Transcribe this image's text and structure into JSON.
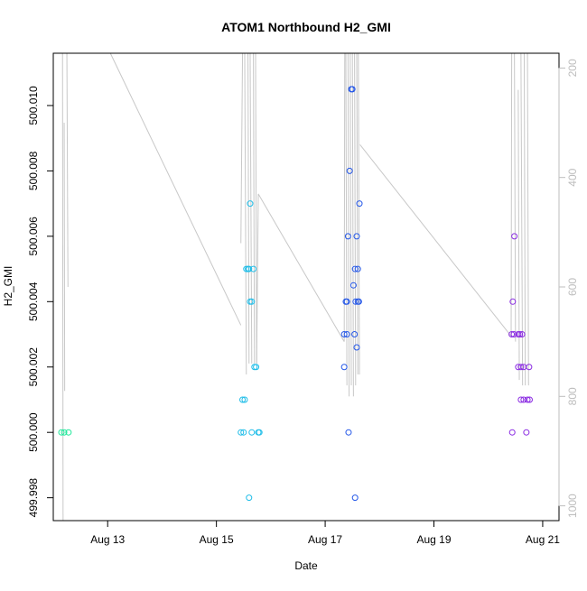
{
  "chart_data": {
    "type": "scatter",
    "title": "ATOM1 Northbound H2_GMI",
    "xlabel": "Date",
    "ylabel": "H2_GMI",
    "x_ticks": [
      "Aug 13",
      "Aug 15",
      "Aug 17",
      "Aug 19",
      "Aug 21"
    ],
    "y_ticks": [
      "499.998",
      "500.000",
      "500.002",
      "500.004",
      "500.006",
      "500.008",
      "500.010"
    ],
    "y2_ticks": [
      "200",
      "400",
      "600",
      "800",
      "1000"
    ],
    "xlim_days": [
      12.0,
      21.3
    ],
    "ylim": [
      499.9973,
      500.0116
    ],
    "y2lim": [
      1027,
      173
    ],
    "grid": false,
    "line_color": "#c8c8c8",
    "points": [
      {
        "x": 12.15,
        "y": 500.0,
        "color": "#1ee89a"
      },
      {
        "x": 12.2,
        "y": 500.0,
        "color": "#1ee89a"
      },
      {
        "x": 12.28,
        "y": 500.0,
        "color": "#1ee89a"
      },
      {
        "x": 15.45,
        "y": 500.0,
        "color": "#1fbde8"
      },
      {
        "x": 15.5,
        "y": 500.0,
        "color": "#1fbde8"
      },
      {
        "x": 15.48,
        "y": 500.001,
        "color": "#1fbde8"
      },
      {
        "x": 15.52,
        "y": 500.001,
        "color": "#1fbde8"
      },
      {
        "x": 15.55,
        "y": 500.005,
        "color": "#1fbde8"
      },
      {
        "x": 15.58,
        "y": 500.005,
        "color": "#1fbde8"
      },
      {
        "x": 15.6,
        "y": 500.005,
        "color": "#1fbde8"
      },
      {
        "x": 15.68,
        "y": 500.005,
        "color": "#1fbde8"
      },
      {
        "x": 15.62,
        "y": 500.004,
        "color": "#1fbde8"
      },
      {
        "x": 15.65,
        "y": 500.004,
        "color": "#1fbde8"
      },
      {
        "x": 15.62,
        "y": 500.007,
        "color": "#1fbde8"
      },
      {
        "x": 15.7,
        "y": 500.002,
        "color": "#1fbde8"
      },
      {
        "x": 15.73,
        "y": 500.002,
        "color": "#1fbde8"
      },
      {
        "x": 15.6,
        "y": 499.998,
        "color": "#1fbde8"
      },
      {
        "x": 15.65,
        "y": 500.0,
        "color": "#1fbde8"
      },
      {
        "x": 15.77,
        "y": 500.0,
        "color": "#1fbde8"
      },
      {
        "x": 15.79,
        "y": 500.0,
        "color": "#1fbde8"
      },
      {
        "x": 17.35,
        "y": 500.002,
        "color": "#2457e8"
      },
      {
        "x": 17.35,
        "y": 500.003,
        "color": "#2457e8"
      },
      {
        "x": 17.4,
        "y": 500.003,
        "color": "#2457e8"
      },
      {
        "x": 17.38,
        "y": 500.004,
        "color": "#2457e8"
      },
      {
        "x": 17.4,
        "y": 500.004,
        "color": "#2457e8"
      },
      {
        "x": 17.42,
        "y": 500.006,
        "color": "#2457e8"
      },
      {
        "x": 17.45,
        "y": 500.008,
        "color": "#2457e8"
      },
      {
        "x": 17.48,
        "y": 500.0105,
        "color": "#2457e8"
      },
      {
        "x": 17.5,
        "y": 500.0105,
        "color": "#2457e8"
      },
      {
        "x": 17.52,
        "y": 500.0045,
        "color": "#2457e8"
      },
      {
        "x": 17.55,
        "y": 500.005,
        "color": "#2457e8"
      },
      {
        "x": 17.58,
        "y": 500.006,
        "color": "#2457e8"
      },
      {
        "x": 17.6,
        "y": 500.005,
        "color": "#2457e8"
      },
      {
        "x": 17.56,
        "y": 500.004,
        "color": "#2457e8"
      },
      {
        "x": 17.6,
        "y": 500.004,
        "color": "#2457e8"
      },
      {
        "x": 17.62,
        "y": 500.004,
        "color": "#2457e8"
      },
      {
        "x": 17.54,
        "y": 500.003,
        "color": "#2457e8"
      },
      {
        "x": 17.58,
        "y": 500.0026,
        "color": "#2457e8"
      },
      {
        "x": 17.63,
        "y": 500.007,
        "color": "#2457e8"
      },
      {
        "x": 17.43,
        "y": 500.0,
        "color": "#2457e8"
      },
      {
        "x": 17.55,
        "y": 499.998,
        "color": "#2457e8"
      },
      {
        "x": 17.48,
        "y": 499.997,
        "color": "#2457e8"
      },
      {
        "x": 17.52,
        "y": 499.997,
        "color": "#2457e8"
      },
      {
        "x": 20.43,
        "y": 500.003,
        "color": "#8a2be2"
      },
      {
        "x": 20.47,
        "y": 500.003,
        "color": "#8a2be2"
      },
      {
        "x": 20.45,
        "y": 500.004,
        "color": "#8a2be2"
      },
      {
        "x": 20.48,
        "y": 500.006,
        "color": "#8a2be2"
      },
      {
        "x": 20.44,
        "y": 500.0,
        "color": "#8a2be2"
      },
      {
        "x": 20.55,
        "y": 500.003,
        "color": "#8a2be2"
      },
      {
        "x": 20.58,
        "y": 500.003,
        "color": "#8a2be2"
      },
      {
        "x": 20.62,
        "y": 500.003,
        "color": "#8a2be2"
      },
      {
        "x": 20.55,
        "y": 500.002,
        "color": "#8a2be2"
      },
      {
        "x": 20.6,
        "y": 500.002,
        "color": "#8a2be2"
      },
      {
        "x": 20.65,
        "y": 500.002,
        "color": "#8a2be2"
      },
      {
        "x": 20.75,
        "y": 500.002,
        "color": "#8a2be2"
      },
      {
        "x": 20.6,
        "y": 500.001,
        "color": "#8a2be2"
      },
      {
        "x": 20.65,
        "y": 500.001,
        "color": "#8a2be2"
      },
      {
        "x": 20.72,
        "y": 500.001,
        "color": "#8a2be2"
      },
      {
        "x": 20.76,
        "y": 500.001,
        "color": "#8a2be2"
      },
      {
        "x": 20.7,
        "y": 500.0,
        "color": "#8a2be2"
      }
    ],
    "line_segments": [
      [
        [
          12.17,
          173
        ],
        [
          12.18,
          1027
        ]
      ],
      [
        [
          12.2,
          300
        ],
        [
          12.21,
          790
        ]
      ],
      [
        [
          12.25,
          173
        ],
        [
          12.27,
          600
        ]
      ],
      [
        [
          13.05,
          173
        ],
        [
          15.45,
          670
        ]
      ],
      [
        [
          15.45,
          520
        ],
        [
          15.48,
          173
        ]
      ],
      [
        [
          15.52,
          173
        ],
        [
          15.55,
          760
        ]
      ],
      [
        [
          15.58,
          173
        ],
        [
          15.6,
          740
        ]
      ],
      [
        [
          15.62,
          173
        ],
        [
          15.65,
          740
        ]
      ],
      [
        [
          15.68,
          173
        ],
        [
          15.7,
          740
        ]
      ],
      [
        [
          15.72,
          173
        ],
        [
          15.74,
          740
        ]
      ],
      [
        [
          15.74,
          740
        ],
        [
          15.77,
          430
        ]
      ],
      [
        [
          15.77,
          430
        ],
        [
          17.35,
          700
        ]
      ],
      [
        [
          17.35,
          700
        ],
        [
          17.36,
          173
        ]
      ],
      [
        [
          17.38,
          173
        ],
        [
          17.4,
          780
        ]
      ],
      [
        [
          17.42,
          173
        ],
        [
          17.44,
          800
        ]
      ],
      [
        [
          17.46,
          173
        ],
        [
          17.48,
          780
        ]
      ],
      [
        [
          17.5,
          173
        ],
        [
          17.52,
          800
        ]
      ],
      [
        [
          17.54,
          173
        ],
        [
          17.56,
          780
        ]
      ],
      [
        [
          17.58,
          173
        ],
        [
          17.6,
          760
        ]
      ],
      [
        [
          17.61,
          173
        ],
        [
          17.63,
          760
        ]
      ],
      [
        [
          17.64,
          340
        ],
        [
          20.42,
          690
        ]
      ],
      [
        [
          20.42,
          690
        ],
        [
          20.43,
          173
        ]
      ],
      [
        [
          20.48,
          173
        ],
        [
          20.5,
          700
        ]
      ],
      [
        [
          20.55,
          240
        ],
        [
          20.57,
          770
        ]
      ],
      [
        [
          20.6,
          173
        ],
        [
          20.63,
          780
        ]
      ],
      [
        [
          20.66,
          173
        ],
        [
          20.68,
          780
        ]
      ],
      [
        [
          20.72,
          173
        ],
        [
          20.74,
          780
        ]
      ]
    ]
  }
}
